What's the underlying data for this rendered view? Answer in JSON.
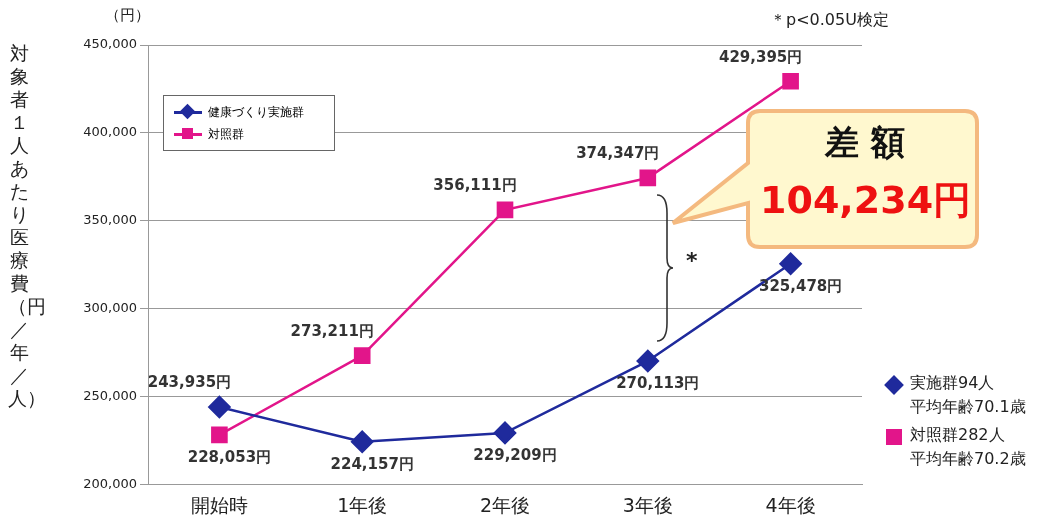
{
  "chart_data": {
    "type": "line",
    "ylabel": "対象者１人あたり医療費（円／年／人）",
    "categories": [
      "開始時",
      "1年後",
      "2年後",
      "3年後",
      "4年後"
    ],
    "series": [
      {
        "name": "健康づくり実施群",
        "color": "#1f2a9c",
        "marker": "diamond",
        "values": [
          243935,
          224157,
          229209,
          270113,
          325478
        ],
        "value_labels": [
          "243,935円",
          "224,157円",
          "229,209円",
          "270,113円",
          "325,478円"
        ]
      },
      {
        "name": "対照群",
        "color": "#e2158a",
        "marker": "square",
        "values": [
          228053,
          273211,
          356111,
          374347,
          429395
        ],
        "value_labels": [
          "228,053円",
          "273,211円",
          "356,111円",
          "374,347円",
          "429,395円"
        ]
      }
    ],
    "ylim": [
      200000,
      450000
    ],
    "yticks": [
      {
        "value": 200000,
        "label": "200,000"
      },
      {
        "value": 250000,
        "label": "250,000"
      },
      {
        "value": 300000,
        "label": "300,000"
      },
      {
        "value": 350000,
        "label": "350,000"
      },
      {
        "value": 400000,
        "label": "400,000"
      },
      {
        "value": 450000,
        "label": "450,000"
      }
    ],
    "grid": "y",
    "legend": "top left",
    "annotations": [
      "（円）",
      "＊p<0.05U検定",
      "*",
      "差 額",
      "104,234円",
      "実施群94人",
      "平均年齢70.1歳",
      "対照群282人",
      "平均年齢70.2歳"
    ]
  }
}
